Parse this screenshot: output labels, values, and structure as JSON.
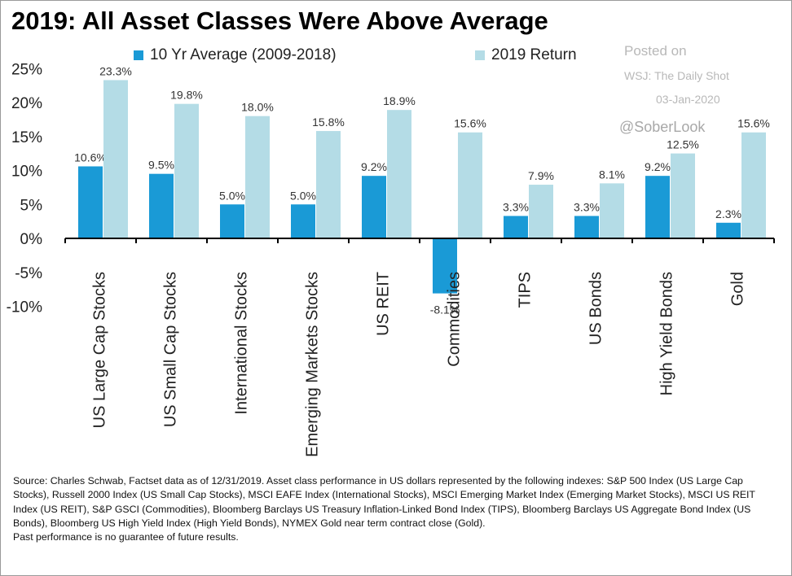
{
  "title": "2019: All Asset Classes Were Above Average",
  "colors": {
    "series_avg": "#1a9ad6",
    "series_2019": "#b4dce6",
    "axis": "#000000"
  },
  "watermark": {
    "posted_on": "Posted on",
    "source": "WSJ: The Daily Shot",
    "date": "03-Jan-2020",
    "handle": "@SoberLook"
  },
  "chart_data": {
    "type": "bar",
    "title": "2019: All Asset Classes Were Above Average",
    "categories": [
      "US Large Cap Stocks",
      "US Small Cap Stocks",
      "International Stocks",
      "Emerging Markets Stocks",
      "US REIT",
      "Commodities",
      "TIPS",
      "US Bonds",
      "High Yield Bonds",
      "Gold"
    ],
    "series": [
      {
        "name": "10 Yr Average (2009-2018)",
        "values": [
          10.6,
          9.5,
          5.0,
          5.0,
          9.2,
          -8.1,
          3.3,
          3.3,
          9.2,
          2.3
        ],
        "labels": [
          "10.6%",
          "9.5%",
          "5.0%",
          "5.0%",
          "9.2%",
          "-8.1%",
          "3.3%",
          "3.3%",
          "9.2%",
          "2.3%"
        ]
      },
      {
        "name": "2019 Return",
        "values": [
          23.3,
          19.8,
          18.0,
          15.8,
          18.9,
          15.6,
          7.9,
          8.1,
          12.5,
          15.6
        ],
        "labels": [
          "23.3%",
          "19.8%",
          "18.0%",
          "15.8%",
          "18.9%",
          "15.6%",
          "7.9%",
          "8.1%",
          "12.5%",
          "15.6%"
        ]
      }
    ],
    "yticks": [
      25,
      20,
      15,
      10,
      5,
      0,
      -5,
      -10
    ],
    "ytick_labels": [
      "25%",
      "20%",
      "15%",
      "10%",
      "5%",
      "0%",
      "-5%",
      "-10%"
    ],
    "ylim": [
      -10,
      25
    ],
    "xlabel": "",
    "ylabel": "",
    "grid": false,
    "legend_position": "top-left"
  },
  "source_note": {
    "source": "Source: Charles Schwab, Factset data as of 12/31/2019. Asset class performance in US dollars represented by the following indexes: S&P 500 Index (US Large Cap Stocks), Russell 2000 Index (US Small Cap Stocks), MSCI EAFE Index (International Stocks), MSCI Emerging Market Index (Emerging Market Stocks), MSCI US REIT Index (US REIT), S&P GSCI (Commodities), Bloomberg Barclays US Treasury Inflation-Linked Bond Index (TIPS), Bloomberg Barclays US Aggregate Bond Index (US Bonds), Bloomberg US High Yield Index (High Yield Bonds), NYMEX Gold near term contract close (Gold).",
    "disclaimer": "Past performance is no guarantee of future results."
  }
}
